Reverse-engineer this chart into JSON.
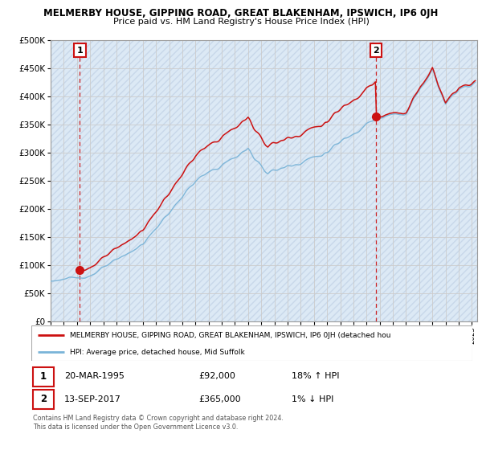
{
  "title": "MELMERBY HOUSE, GIPPING ROAD, GREAT BLAKENHAM, IPSWICH, IP6 0JH",
  "subtitle": "Price paid vs. HM Land Registry's House Price Index (HPI)",
  "ylabel_ticks": [
    "£0",
    "£50K",
    "£100K",
    "£150K",
    "£200K",
    "£250K",
    "£300K",
    "£350K",
    "£400K",
    "£450K",
    "£500K"
  ],
  "ytick_vals": [
    0,
    50000,
    100000,
    150000,
    200000,
    250000,
    300000,
    350000,
    400000,
    450000,
    500000
  ],
  "ylim": [
    0,
    500000
  ],
  "xlim_start": 1993.0,
  "xlim_end": 2025.4,
  "sale1_x": 1995.22,
  "sale1_y": 92000,
  "sale2_x": 2017.71,
  "sale2_y": 365000,
  "sale1_date": "20-MAR-1995",
  "sale1_price": "£92,000",
  "sale1_hpi": "18% ↑ HPI",
  "sale2_date": "13-SEP-2017",
  "sale2_price": "£365,000",
  "sale2_hpi": "1% ↓ HPI",
  "legend_line1": "MELMERBY HOUSE, GIPPING ROAD, GREAT BLAKENHAM, IPSWICH, IP6 0JH (detached hou",
  "legend_line2": "HPI: Average price, detached house, Mid Suffolk",
  "footer": "Contains HM Land Registry data © Crown copyright and database right 2024.\nThis data is licensed under the Open Government Licence v3.0.",
  "hpi_color": "#7ab4d8",
  "sale_color": "#cc1111",
  "bg_color": "#dce9f5",
  "grid_color": "#bbbbbb",
  "hatch_color": "#c8d8ea"
}
